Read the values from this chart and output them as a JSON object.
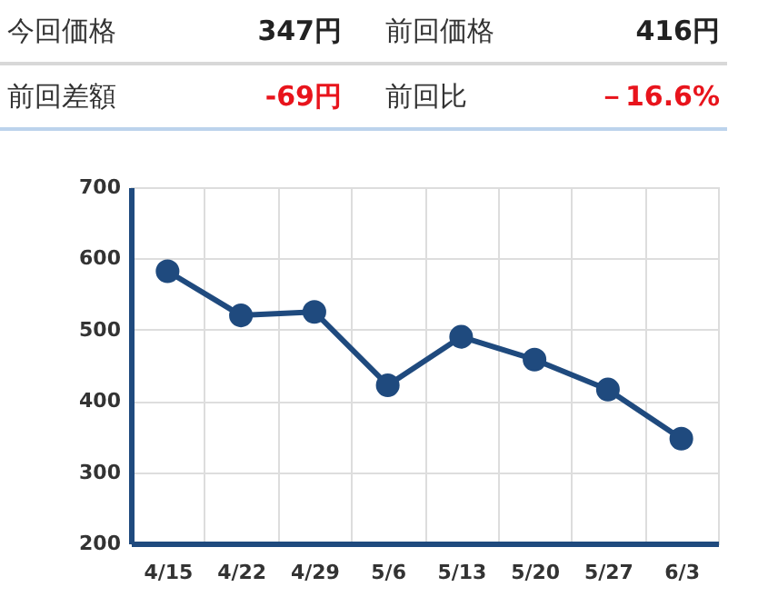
{
  "chart_data": [
    {
      "type": "other",
      "annotations": [
        "今回価格",
        "347円",
        "前回価格",
        "416円",
        "前回差額",
        "-69円",
        "前回比",
        "－16.6%"
      ]
    },
    {
      "type": "line",
      "categories": [
        "4/15",
        "4/22",
        "4/29",
        "5/6",
        "5/13",
        "5/20",
        "5/27",
        "6/3"
      ],
      "values": [
        582,
        520,
        525,
        422,
        490,
        458,
        416,
        347
      ],
      "color": "#1f4a7e",
      "ylim": [
        200,
        700
      ],
      "yticks": [
        200,
        300,
        400,
        500,
        600,
        700
      ],
      "grid": true,
      "marker": "circle"
    }
  ]
}
